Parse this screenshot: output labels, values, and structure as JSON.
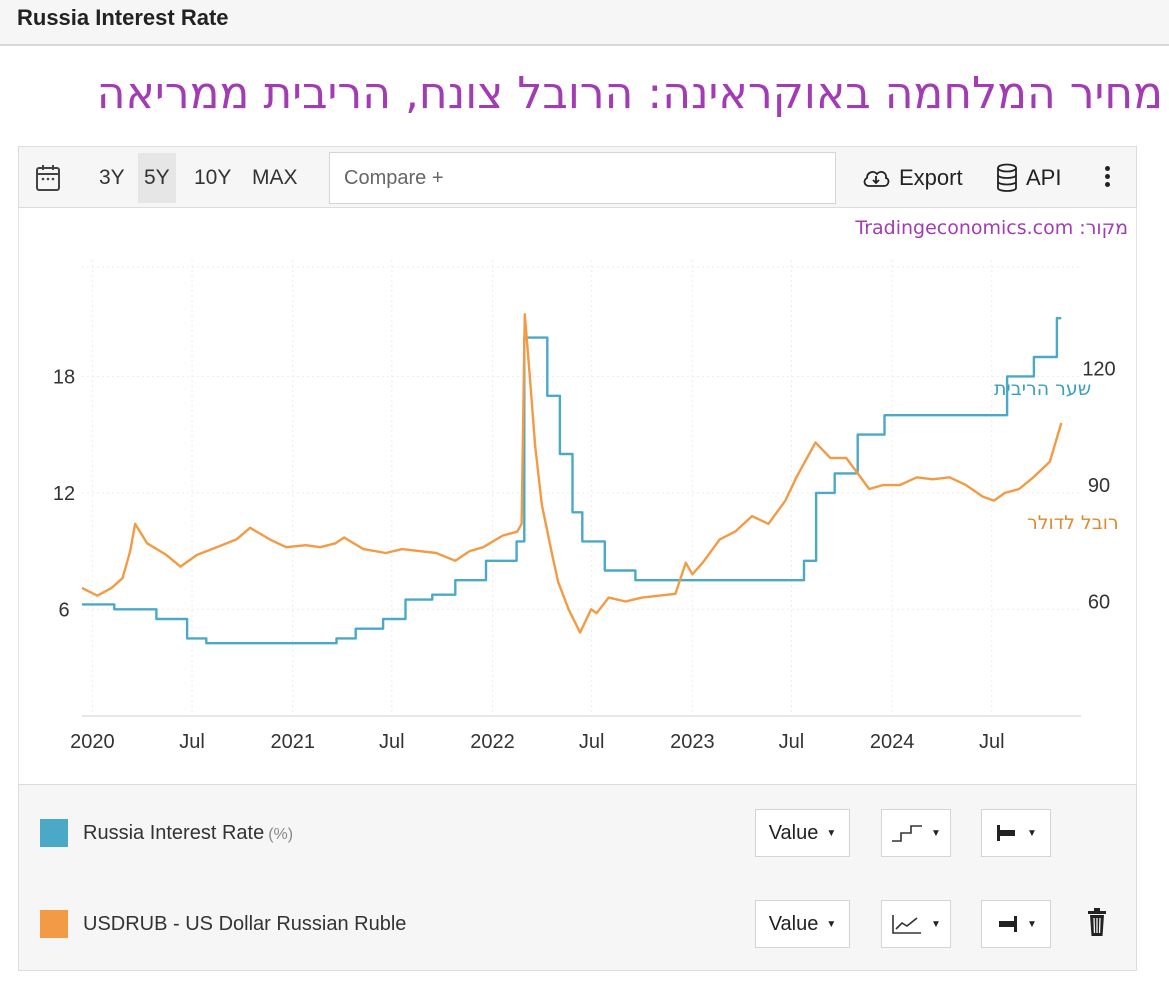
{
  "page": {
    "title": "Russia Interest Rate"
  },
  "headline": "מחיר המלחמה באוקראינה: הרובל צונח, הריבית ממריאה",
  "toolbar": {
    "ranges": [
      "3Y",
      "5Y",
      "10Y",
      "MAX"
    ],
    "active_range": "5Y",
    "compare_placeholder": "Compare +",
    "export_label": "Export",
    "api_label": "API"
  },
  "source_note": "מקור: Tradingeconomics.com",
  "annotations": {
    "rate_label": "שער הריבית",
    "ruble_label": "רובל לדולר"
  },
  "legend": [
    {
      "label": "Russia Interest Rate",
      "unit": "(%)",
      "color": "#4aa9c6",
      "control": "Value"
    },
    {
      "label": "USDRUB - US Dollar Russian Ruble",
      "unit": "",
      "color": "#f39a45",
      "control": "Value"
    }
  ],
  "chart_data": {
    "type": "line",
    "x_ticks": [
      "2020",
      "Jul",
      "2021",
      "Jul",
      "2022",
      "Jul",
      "2023",
      "Jul",
      "2024",
      "Jul"
    ],
    "y_left": {
      "ticks": [
        6,
        12,
        18
      ],
      "range": [
        0.5,
        24
      ],
      "unit": "%"
    },
    "y_right": {
      "ticks": [
        60,
        90,
        120
      ],
      "range": [
        30.5,
        148
      ]
    },
    "grid": true,
    "series": [
      {
        "name": "Russia Interest Rate",
        "axis": "left",
        "color": "#4aa9c6",
        "step": true,
        "x": [
          "2019-12-13",
          "2020-02-10",
          "2020-04-27",
          "2020-06-22",
          "2020-07-27",
          "2021-03-22",
          "2021-04-26",
          "2021-06-15",
          "2021-07-26",
          "2021-09-13",
          "2021-10-25",
          "2021-12-20",
          "2022-02-14",
          "2022-02-28",
          "2022-04-11",
          "2022-05-04",
          "2022-05-27",
          "2022-06-14",
          "2022-07-25",
          "2022-09-19",
          "2023-07-24",
          "2023-08-15",
          "2023-09-18",
          "2023-10-30",
          "2023-12-18",
          "2024-07-29",
          "2024-09-16",
          "2024-10-28",
          "2024-11-05"
        ],
        "values": [
          6.25,
          6.0,
          5.5,
          4.5,
          4.25,
          4.5,
          5.0,
          5.5,
          6.5,
          6.75,
          7.5,
          8.5,
          9.5,
          20.0,
          17.0,
          14.0,
          11.0,
          9.5,
          8.0,
          7.5,
          8.5,
          12.0,
          13.0,
          15.0,
          16.0,
          18.0,
          19.0,
          21.0,
          21.0
        ]
      },
      {
        "name": "USDRUB - US Dollar Russian Ruble",
        "axis": "right",
        "color": "#f39a45",
        "step": false,
        "x": [
          "2019-12-13",
          "2020-01-10",
          "2020-02-05",
          "2020-02-25",
          "2020-03-10",
          "2020-03-19",
          "2020-04-10",
          "2020-05-15",
          "2020-06-10",
          "2020-07-10",
          "2020-08-15",
          "2020-09-20",
          "2020-10-15",
          "2020-11-20",
          "2020-12-20",
          "2021-01-25",
          "2021-02-20",
          "2021-03-20",
          "2021-04-05",
          "2021-05-10",
          "2021-06-20",
          "2021-07-20",
          "2021-08-20",
          "2021-09-20",
          "2021-10-25",
          "2021-11-20",
          "2021-12-15",
          "2022-01-20",
          "2022-02-15",
          "2022-02-23",
          "2022-03-01",
          "2022-03-10",
          "2022-03-20",
          "2022-04-01",
          "2022-04-20",
          "2022-05-01",
          "2022-05-20",
          "2022-06-10",
          "2022-06-20",
          "2022-06-30",
          "2022-07-10",
          "2022-08-01",
          "2022-09-01",
          "2022-10-01",
          "2022-11-01",
          "2022-12-01",
          "2022-12-20",
          "2023-01-01",
          "2023-01-20",
          "2023-02-20",
          "2023-03-20",
          "2023-04-20",
          "2023-05-20",
          "2023-06-20",
          "2023-07-10",
          "2023-08-14",
          "2023-09-10",
          "2023-10-09",
          "2023-10-30",
          "2023-11-20",
          "2023-12-15",
          "2024-01-15",
          "2024-02-15",
          "2024-03-15",
          "2024-04-15",
          "2024-05-15",
          "2024-06-15",
          "2024-07-05",
          "2024-07-25",
          "2024-08-20",
          "2024-09-15",
          "2024-10-15",
          "2024-11-05"
        ],
        "values": [
          63.5,
          61.5,
          63.5,
          66.0,
          73.0,
          80.0,
          75.0,
          72.0,
          69.0,
          72.0,
          74.0,
          76.0,
          79.0,
          76.0,
          74.0,
          74.5,
          74.0,
          75.0,
          76.5,
          73.5,
          72.5,
          73.5,
          73.0,
          72.5,
          70.5,
          73.0,
          74.0,
          77.0,
          78.0,
          80.0,
          134.0,
          118.0,
          100.0,
          85.0,
          72.0,
          65.0,
          58.0,
          52.0,
          55.0,
          58.0,
          57.0,
          61.0,
          60.0,
          61.0,
          61.5,
          62.0,
          70.0,
          67.0,
          70.0,
          76.0,
          78.0,
          82.0,
          80.0,
          86.0,
          92.0,
          101.0,
          97.0,
          97.0,
          93.0,
          89.0,
          90.0,
          90.0,
          92.0,
          91.5,
          92.0,
          90.0,
          87.0,
          86.0,
          88.0,
          89.0,
          92.0,
          96.0,
          106.0
        ]
      }
    ]
  }
}
